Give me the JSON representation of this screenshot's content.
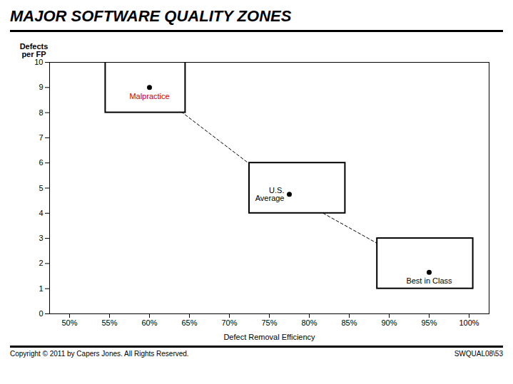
{
  "chart_data": {
    "type": "scatter",
    "title": "MAJOR SOFTWARE QUALITY ZONES",
    "xlabel": "Defect Removal Efficiency",
    "ylabel": "Defects\nper FP",
    "x": [
      0.6,
      0.775,
      0.95
    ],
    "values": [
      9.0,
      4.75,
      1.65
    ],
    "labels": [
      "Malpractice",
      "U.S.\nAverage",
      "Best in Class"
    ],
    "label_colors": [
      "#cc0000",
      "#000000",
      "#000000"
    ],
    "color": "#000000",
    "line_style": "dashed",
    "marker": "circle",
    "boxes": [
      {
        "x0": 0.545,
        "y0": 8.0,
        "x1": 0.645,
        "y1": 10.0
      },
      {
        "x0": 0.725,
        "y0": 4.0,
        "x1": 0.845,
        "y1": 6.0
      },
      {
        "x0": 0.885,
        "y0": 1.0,
        "x1": 1.005,
        "y1": 3.0
      }
    ],
    "xlim": [
      0.475,
      1.025
    ],
    "ylim": [
      0,
      10
    ],
    "xticks": [
      {
        "value": 0.5,
        "label": "50%"
      },
      {
        "value": 0.55,
        "label": "55%"
      },
      {
        "value": 0.6,
        "label": "60%"
      },
      {
        "value": 0.65,
        "label": "65%"
      },
      {
        "value": 0.7,
        "label": "70%"
      },
      {
        "value": 0.75,
        "label": "75%"
      },
      {
        "value": 0.8,
        "label": "80%"
      },
      {
        "value": 0.85,
        "label": "85%"
      },
      {
        "value": 0.9,
        "label": "90%"
      },
      {
        "value": 0.95,
        "label": "95%"
      },
      {
        "value": 1.0,
        "label": "100%"
      }
    ],
    "yticks": [
      0,
      1,
      2,
      3,
      4,
      5,
      6,
      7,
      8,
      9,
      10
    ],
    "grid": false,
    "annotations": [
      "Copyright © 2011 by Capers Jones.  All Rights Reserved.",
      "SWQUAL08\\53"
    ]
  }
}
